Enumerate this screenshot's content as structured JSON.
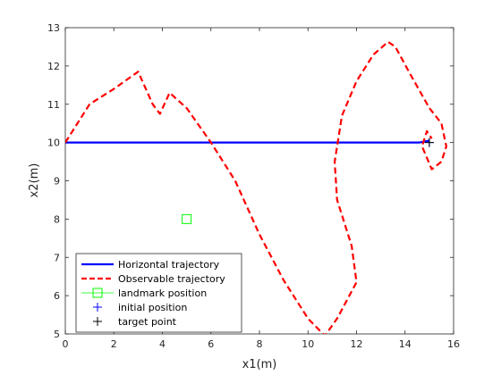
{
  "chart_data": {
    "type": "line",
    "title": "",
    "xlabel": "x1(m)",
    "ylabel": "x2(m)",
    "xlim": [
      0,
      16
    ],
    "ylim": [
      5,
      13
    ],
    "xticks": [
      0,
      2,
      4,
      6,
      8,
      10,
      12,
      14,
      16
    ],
    "yticks": [
      5,
      6,
      7,
      8,
      9,
      10,
      11,
      12,
      13
    ],
    "grid": false,
    "legend_position": "bottom-left",
    "series": [
      {
        "name": "Horizontal trajectory",
        "style": "solid",
        "color": "#0000ff",
        "x": [
          0,
          2,
          4,
          6,
          8,
          10,
          12,
          14,
          14.6,
          15.0
        ],
        "y": [
          10.0,
          10.0,
          10.0,
          10.0,
          10.0,
          10.0,
          10.0,
          10.0,
          10.0,
          10.05
        ]
      },
      {
        "name": "Observable trajectory",
        "style": "dashed",
        "color": "#ff0000",
        "x": [
          0,
          0.3,
          1.0,
          2.0,
          3.0,
          3.6,
          3.9,
          4.3,
          5.0,
          6.0,
          7.0,
          8.0,
          9.0,
          10.0,
          10.7,
          11.2,
          12.0,
          11.8,
          11.2,
          11.1,
          11.4,
          12.0,
          12.7,
          13.3,
          13.6,
          14.2,
          15.0,
          15.5,
          15.7,
          15.5,
          15.1,
          14.9,
          14.7,
          14.9,
          15.1
        ],
        "y": [
          10.0,
          10.3,
          11.0,
          11.4,
          11.85,
          11.0,
          10.75,
          11.3,
          10.9,
          10.0,
          9.0,
          7.6,
          6.4,
          5.4,
          4.95,
          5.4,
          6.35,
          7.3,
          8.5,
          9.5,
          10.7,
          11.6,
          12.3,
          12.63,
          12.5,
          11.8,
          10.9,
          10.5,
          9.9,
          9.5,
          9.3,
          9.6,
          9.9,
          10.3,
          10.1
        ]
      },
      {
        "name": "landmark position",
        "style": "marker",
        "marker": "square",
        "color": "#00ff00",
        "x": [
          5
        ],
        "y": [
          8
        ]
      },
      {
        "name": "initial position",
        "style": "marker",
        "marker": "plus",
        "color": "#0000ff",
        "x": [
          15
        ],
        "y": [
          10
        ]
      },
      {
        "name": "target point",
        "style": "marker",
        "marker": "plus",
        "color": "#000000",
        "x": [
          15
        ],
        "y": [
          10
        ]
      }
    ]
  }
}
